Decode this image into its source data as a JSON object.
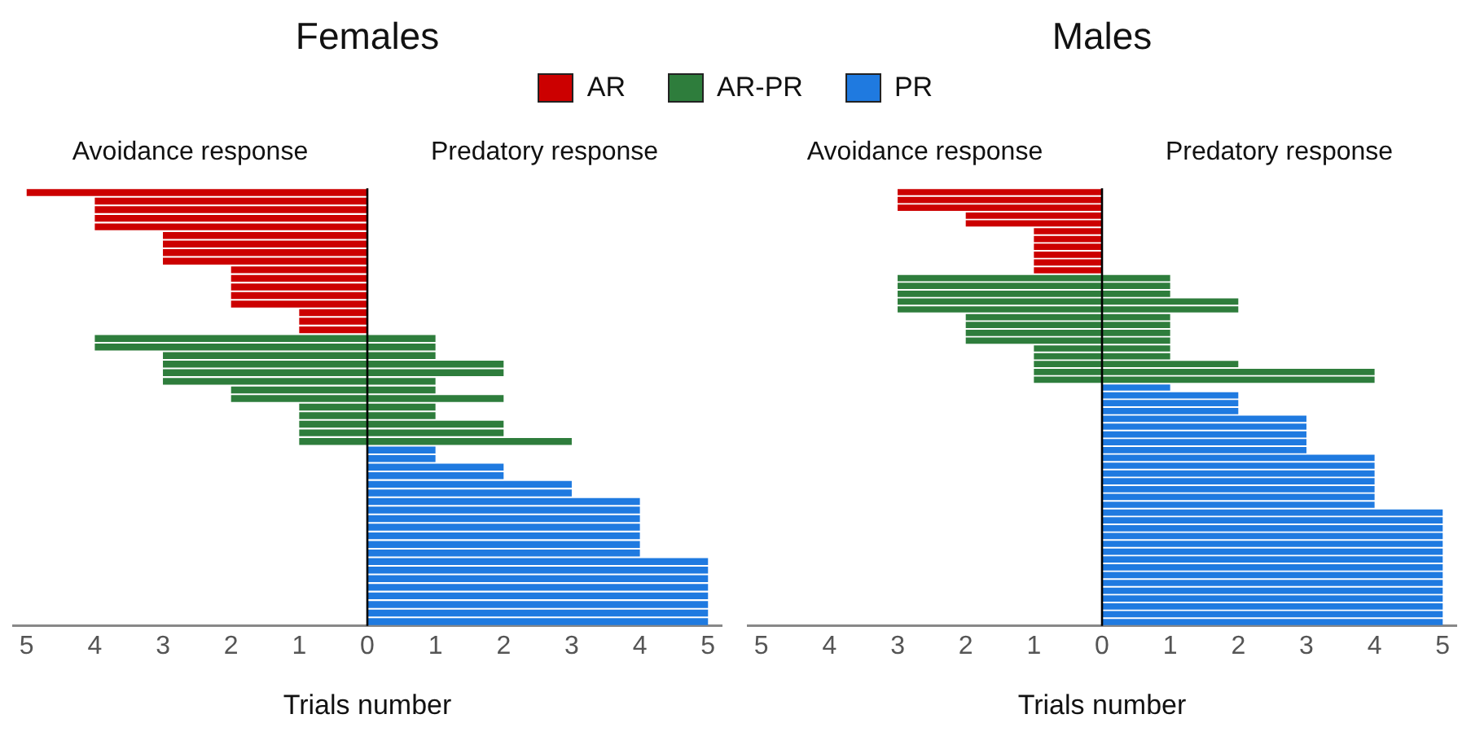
{
  "chart_data": [
    {
      "type": "bar",
      "orientation": "horizontal",
      "stacked": true,
      "title": "Females",
      "xlabel": "Trials number",
      "legend": "top",
      "tick_labels": "x",
      "grid": false,
      "annotations": [
        "Avoidance response",
        "Predatory response"
      ],
      "ref_lines": [
        {
          "axis": "x",
          "value": 0,
          "color": "#000000"
        }
      ],
      "xlim": [
        -5.2,
        5.2
      ],
      "xticks": [
        {
          "value": -5,
          "label": "5"
        },
        {
          "value": -4,
          "label": "4"
        },
        {
          "value": -3,
          "label": "3"
        },
        {
          "value": -2,
          "label": "2"
        },
        {
          "value": -1,
          "label": "1"
        },
        0,
        1,
        2,
        3,
        4,
        5
      ],
      "categories": [
        null,
        null,
        null,
        null,
        null,
        null,
        null,
        null,
        null,
        null,
        null,
        null,
        null,
        null,
        null,
        null,
        null,
        null,
        null,
        null,
        null,
        null,
        null,
        null,
        null,
        null,
        null,
        null,
        null,
        null,
        null,
        null,
        null,
        null,
        null,
        null,
        null,
        null,
        null,
        null,
        null,
        null,
        null,
        null,
        null,
        null,
        null,
        null,
        null,
        null,
        null
      ],
      "series": [
        {
          "name": "AR",
          "color": "#cc0000",
          "values": [
            -5,
            -4,
            -4,
            -4,
            -4,
            -3,
            -3,
            -3,
            -3,
            -2,
            -2,
            -2,
            -2,
            -2,
            -1,
            -1,
            -1,
            null,
            null,
            null,
            null,
            null,
            null,
            null,
            null,
            null,
            null,
            null,
            null,
            null,
            null,
            null,
            null,
            null,
            null,
            null,
            null,
            null,
            null,
            null,
            null,
            null,
            null,
            null,
            null,
            null,
            null,
            null,
            null,
            null,
            null
          ]
        },
        {
          "name": "AR-PR",
          "color": "#2e7d3c",
          "values": [
            null,
            null,
            null,
            null,
            null,
            null,
            null,
            null,
            null,
            null,
            null,
            null,
            null,
            null,
            null,
            null,
            null,
            -4,
            -4,
            -3,
            -3,
            -3,
            -3,
            -2,
            -2,
            -1,
            -1,
            -1,
            -1,
            -1,
            null,
            null,
            null,
            null,
            null,
            null,
            null,
            null,
            null,
            null,
            null,
            null,
            null,
            null,
            null,
            null,
            null,
            null,
            null,
            null,
            null
          ]
        },
        {
          "color": "#2e7d3c",
          "values": [
            null,
            null,
            null,
            null,
            null,
            null,
            null,
            null,
            null,
            null,
            null,
            null,
            null,
            null,
            null,
            null,
            null,
            1,
            1,
            1,
            2,
            2,
            1,
            1,
            2,
            1,
            1,
            2,
            2,
            3,
            null,
            null,
            null,
            null,
            null,
            null,
            null,
            null,
            null,
            null,
            null,
            null,
            null,
            null,
            null,
            null,
            null,
            null,
            null,
            null,
            null
          ]
        },
        {
          "name": "PR",
          "color": "#1f7ae0",
          "values": [
            null,
            null,
            null,
            null,
            null,
            null,
            null,
            null,
            null,
            null,
            null,
            null,
            null,
            null,
            null,
            null,
            null,
            null,
            null,
            null,
            null,
            null,
            null,
            null,
            null,
            null,
            null,
            null,
            null,
            null,
            1,
            1,
            2,
            2,
            3,
            3,
            4,
            4,
            4,
            4,
            4,
            4,
            4,
            5,
            5,
            5,
            5,
            5,
            5,
            5,
            5
          ]
        }
      ]
    },
    {
      "type": "bar",
      "orientation": "horizontal",
      "stacked": true,
      "title": "Males",
      "xlabel": "Trials number",
      "tick_labels": "x",
      "grid": false,
      "annotations": [
        "Avoidance response",
        "Predatory response"
      ],
      "ref_lines": [
        {
          "axis": "x",
          "value": 0,
          "color": "#000000"
        }
      ],
      "xlim": [
        -5.2,
        5.2
      ],
      "xticks": [
        {
          "value": -5,
          "label": "5"
        },
        {
          "value": -4,
          "label": "4"
        },
        {
          "value": -3,
          "label": "3"
        },
        {
          "value": -2,
          "label": "2"
        },
        {
          "value": -1,
          "label": "1"
        },
        0,
        1,
        2,
        3,
        4,
        5
      ],
      "categories": [
        null,
        null,
        null,
        null,
        null,
        null,
        null,
        null,
        null,
        null,
        null,
        null,
        null,
        null,
        null,
        null,
        null,
        null,
        null,
        null,
        null,
        null,
        null,
        null,
        null,
        null,
        null,
        null,
        null,
        null,
        null,
        null,
        null,
        null,
        null,
        null,
        null,
        null,
        null,
        null,
        null,
        null,
        null,
        null,
        null,
        null,
        null,
        null,
        null,
        null,
        null,
        null,
        null,
        null,
        null,
        null
      ],
      "series": [
        {
          "color": "#cc0000",
          "values": [
            -3,
            -3,
            -3,
            -2,
            -2,
            -1,
            -1,
            -1,
            -1,
            -1,
            -1,
            null,
            null,
            null,
            null,
            null,
            null,
            null,
            null,
            null,
            null,
            null,
            null,
            null,
            null,
            null,
            null,
            null,
            null,
            null,
            null,
            null,
            null,
            null,
            null,
            null,
            null,
            null,
            null,
            null,
            null,
            null,
            null,
            null,
            null,
            null,
            null,
            null,
            null,
            null,
            null,
            null,
            null,
            null,
            null,
            null
          ]
        },
        {
          "color": "#2e7d3c",
          "values": [
            null,
            null,
            null,
            null,
            null,
            null,
            null,
            null,
            null,
            null,
            null,
            -3,
            -3,
            -3,
            -3,
            -3,
            -2,
            -2,
            -2,
            -2,
            -1,
            -1,
            -1,
            -1,
            -1,
            null,
            null,
            null,
            null,
            null,
            null,
            null,
            null,
            null,
            null,
            null,
            null,
            null,
            null,
            null,
            null,
            null,
            null,
            null,
            null,
            null,
            null,
            null,
            null,
            null,
            null,
            null,
            null,
            null,
            null,
            null
          ]
        },
        {
          "color": "#2e7d3c",
          "values": [
            null,
            null,
            null,
            null,
            null,
            null,
            null,
            null,
            null,
            null,
            null,
            1,
            1,
            1,
            2,
            2,
            1,
            1,
            1,
            1,
            1,
            1,
            2,
            4,
            4,
            null,
            null,
            null,
            null,
            null,
            null,
            null,
            null,
            null,
            null,
            null,
            null,
            null,
            null,
            null,
            null,
            null,
            null,
            null,
            null,
            null,
            null,
            null,
            null,
            null,
            null,
            null,
            null,
            null,
            null,
            null
          ]
        },
        {
          "color": "#1f7ae0",
          "values": [
            null,
            null,
            null,
            null,
            null,
            null,
            null,
            null,
            null,
            null,
            null,
            null,
            null,
            null,
            null,
            null,
            null,
            null,
            null,
            null,
            null,
            null,
            null,
            null,
            null,
            1,
            2,
            2,
            2,
            3,
            3,
            3,
            3,
            3,
            4,
            4,
            4,
            4,
            4,
            4,
            4,
            5,
            5,
            5,
            5,
            5,
            5,
            5,
            5,
            5,
            5,
            5,
            5,
            5,
            5,
            5
          ]
        }
      ]
    }
  ]
}
